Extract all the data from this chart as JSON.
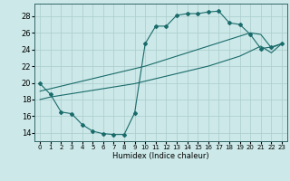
{
  "xlabel": "Humidex (Indice chaleur)",
  "bg_color": "#cce8e8",
  "grid_color": "#aacccc",
  "line_color": "#1a6b6b",
  "xlim": [
    -0.5,
    23.5
  ],
  "ylim": [
    13.0,
    29.5
  ],
  "xticks": [
    0,
    1,
    2,
    3,
    4,
    5,
    6,
    7,
    8,
    9,
    10,
    11,
    12,
    13,
    14,
    15,
    16,
    17,
    18,
    19,
    20,
    21,
    22,
    23
  ],
  "yticks": [
    14,
    16,
    18,
    20,
    22,
    24,
    26,
    28
  ],
  "line1_x": [
    0,
    1,
    2,
    3,
    4,
    5,
    6,
    7,
    8,
    9,
    10,
    11,
    12,
    13,
    14,
    15,
    16,
    17,
    18,
    19,
    20,
    21,
    22,
    23
  ],
  "line1_y": [
    19.9,
    18.6,
    16.5,
    16.3,
    15.0,
    14.2,
    13.9,
    13.8,
    13.8,
    16.4,
    24.7,
    26.8,
    26.8,
    28.1,
    28.3,
    28.3,
    28.5,
    28.6,
    27.2,
    27.0,
    25.8,
    24.1,
    24.3,
    24.7
  ],
  "line2_x": [
    0,
    1,
    2,
    3,
    4,
    5,
    6,
    7,
    8,
    9,
    10,
    11,
    12,
    13,
    14,
    15,
    16,
    17,
    18,
    19,
    20,
    21,
    22,
    23
  ],
  "line2_y": [
    19.0,
    19.3,
    19.6,
    19.9,
    20.2,
    20.5,
    20.8,
    21.1,
    21.4,
    21.7,
    22.0,
    22.4,
    22.8,
    23.2,
    23.6,
    24.0,
    24.4,
    24.8,
    25.2,
    25.6,
    26.0,
    25.8,
    24.2,
    24.7
  ],
  "line3_x": [
    0,
    1,
    2,
    3,
    4,
    5,
    6,
    7,
    8,
    9,
    10,
    11,
    12,
    13,
    14,
    15,
    16,
    17,
    18,
    19,
    20,
    21,
    22,
    23
  ],
  "line3_y": [
    18.0,
    18.3,
    18.5,
    18.7,
    18.9,
    19.1,
    19.3,
    19.5,
    19.7,
    19.9,
    20.2,
    20.5,
    20.8,
    21.1,
    21.4,
    21.7,
    22.0,
    22.4,
    22.8,
    23.2,
    23.8,
    24.4,
    23.6,
    24.7
  ]
}
